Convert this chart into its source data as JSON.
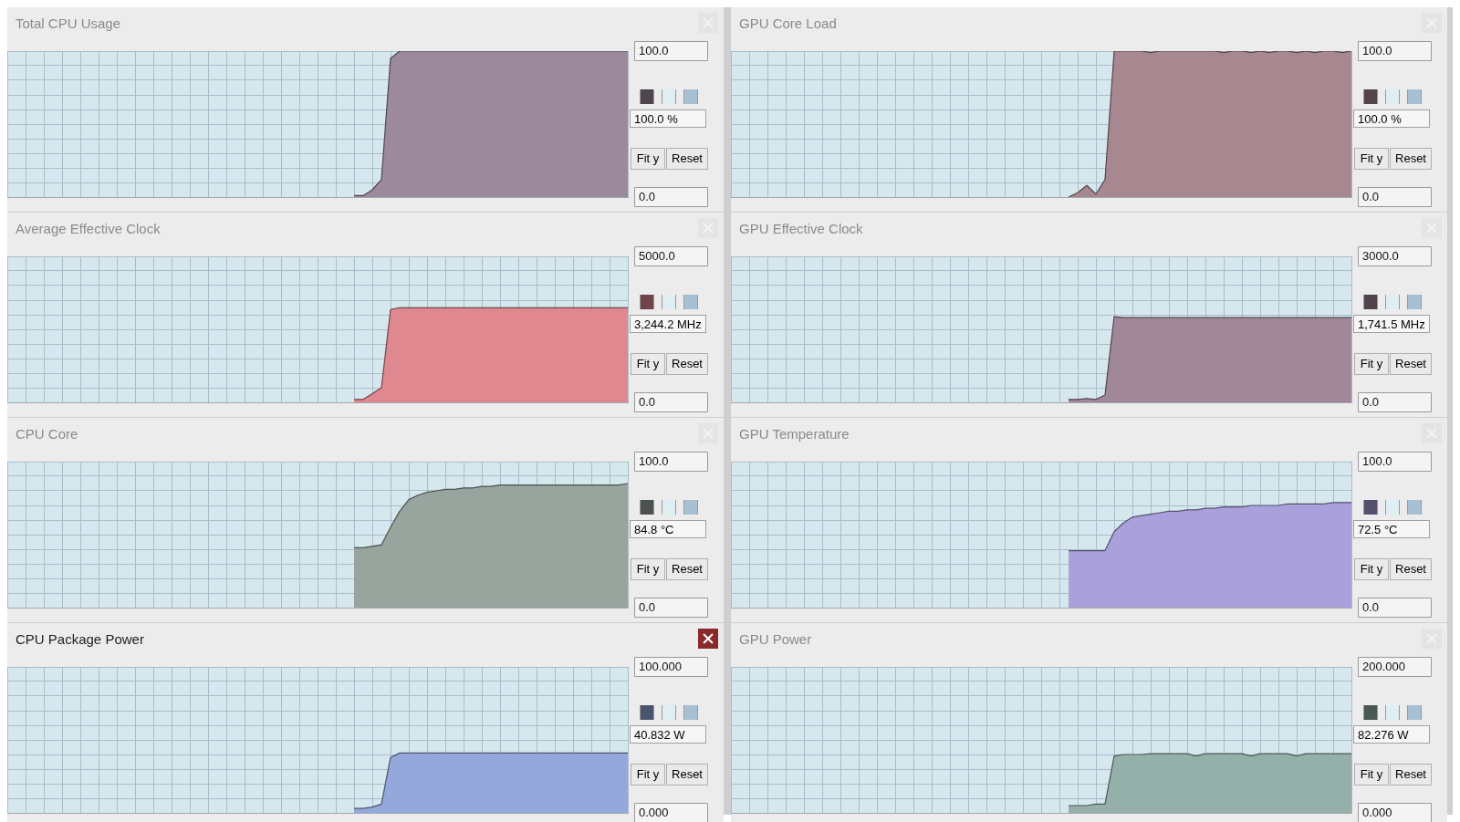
{
  "chart_data": [
    {
      "type": "area",
      "title": "Total CPU Usage",
      "categories": [
        null,
        null,
        null,
        null,
        null,
        null,
        null,
        null,
        null,
        null,
        null,
        null,
        null,
        null,
        null,
        null,
        null,
        null,
        null,
        null,
        null,
        null,
        null,
        null,
        null,
        null,
        null,
        null,
        null,
        null,
        null,
        null,
        null,
        null,
        null,
        null,
        null,
        null,
        null,
        null,
        null,
        null,
        null,
        null,
        null,
        null,
        null,
        null,
        null,
        null,
        null,
        null,
        null,
        null,
        null,
        null,
        null,
        null,
        null,
        null,
        null,
        null,
        null,
        null,
        null,
        null,
        null,
        null,
        null
      ],
      "ylim": [
        0,
        100
      ],
      "yticks": [
        {
          "value": 0,
          "label": "0.0"
        },
        {
          "value": 10,
          "label": null
        },
        {
          "value": 20,
          "label": null
        },
        {
          "value": 30,
          "label": null
        },
        {
          "value": 40,
          "label": null
        },
        {
          "value": 50,
          "label": null
        },
        {
          "value": 60,
          "label": null
        },
        {
          "value": 70,
          "label": null
        },
        {
          "value": 80,
          "label": null
        },
        {
          "value": 90,
          "label": null
        },
        {
          "value": 100,
          "label": "100.0"
        }
      ],
      "grid": true,
      "tick_labels": "y",
      "series": [
        {
          "color": "#9c8a9c",
          "values": [
            null,
            null,
            null,
            null,
            null,
            null,
            null,
            null,
            null,
            null,
            null,
            null,
            null,
            null,
            null,
            null,
            null,
            null,
            null,
            null,
            null,
            null,
            null,
            null,
            null,
            null,
            null,
            null,
            null,
            null,
            null,
            null,
            null,
            null,
            null,
            null,
            null,
            null,
            1,
            1,
            5,
            12,
            95,
            100,
            100,
            100,
            100,
            100,
            100,
            100,
            100,
            100,
            100,
            100,
            100,
            100,
            100,
            100,
            100,
            100,
            100,
            100,
            100,
            100,
            100,
            100,
            100,
            100,
            100
          ]
        }
      ],
      "annotations": [
        "100.0 %",
        "Fit y",
        "Reset"
      ]
    },
    {
      "type": "area",
      "title": "GPU Core Load",
      "categories": [
        null,
        null,
        null,
        null,
        null,
        null,
        null,
        null,
        null,
        null,
        null,
        null,
        null,
        null,
        null,
        null,
        null,
        null,
        null,
        null,
        null,
        null,
        null,
        null,
        null,
        null,
        null,
        null,
        null,
        null,
        null,
        null,
        null,
        null,
        null,
        null,
        null,
        null,
        null,
        null,
        null,
        null,
        null,
        null,
        null,
        null,
        null,
        null,
        null,
        null,
        null,
        null,
        null,
        null,
        null,
        null,
        null,
        null,
        null,
        null,
        null,
        null,
        null,
        null,
        null,
        null,
        null,
        null,
        null
      ],
      "ylim": [
        0,
        100
      ],
      "yticks": [
        {
          "value": 0,
          "label": "0.0"
        },
        {
          "value": 10,
          "label": null
        },
        {
          "value": 20,
          "label": null
        },
        {
          "value": 30,
          "label": null
        },
        {
          "value": 40,
          "label": null
        },
        {
          "value": 50,
          "label": null
        },
        {
          "value": 60,
          "label": null
        },
        {
          "value": 70,
          "label": null
        },
        {
          "value": 80,
          "label": null
        },
        {
          "value": 90,
          "label": null
        },
        {
          "value": 100,
          "label": "100.0"
        }
      ],
      "grid": true,
      "tick_labels": "y",
      "series": [
        {
          "color": "#a88890",
          "values": [
            null,
            null,
            null,
            null,
            null,
            null,
            null,
            null,
            null,
            null,
            null,
            null,
            null,
            null,
            null,
            null,
            null,
            null,
            null,
            null,
            null,
            null,
            null,
            null,
            null,
            null,
            null,
            null,
            null,
            null,
            null,
            null,
            null,
            null,
            null,
            null,
            null,
            0,
            3,
            8,
            2,
            12,
            100,
            100,
            100,
            100,
            99,
            100,
            100,
            100,
            100,
            100,
            100,
            100,
            99,
            100,
            100,
            99,
            100,
            99,
            100,
            100,
            99,
            100,
            99,
            100,
            100,
            99,
            100
          ]
        }
      ],
      "annotations": [
        "100.0 %",
        "Fit y",
        "Reset"
      ]
    },
    {
      "type": "area",
      "title": "Average Effective Clock",
      "categories": [
        null,
        null,
        null,
        null,
        null,
        null,
        null,
        null,
        null,
        null,
        null,
        null,
        null,
        null,
        null,
        null,
        null,
        null,
        null,
        null,
        null,
        null,
        null,
        null,
        null,
        null,
        null,
        null,
        null,
        null,
        null,
        null,
        null,
        null,
        null,
        null,
        null,
        null,
        null,
        null,
        null,
        null,
        null,
        null,
        null,
        null,
        null,
        null,
        null,
        null,
        null,
        null,
        null,
        null,
        null,
        null,
        null,
        null,
        null,
        null,
        null,
        null,
        null,
        null,
        null,
        null,
        null,
        null,
        null
      ],
      "ylim": [
        0,
        5000
      ],
      "yticks": [
        {
          "value": 0,
          "label": "0.0"
        },
        {
          "value": 500,
          "label": null
        },
        {
          "value": 1000,
          "label": null
        },
        {
          "value": 1500,
          "label": null
        },
        {
          "value": 2000,
          "label": null
        },
        {
          "value": 2500,
          "label": null
        },
        {
          "value": 3000,
          "label": null
        },
        {
          "value": 3500,
          "label": null
        },
        {
          "value": 4000,
          "label": null
        },
        {
          "value": 4500,
          "label": null
        },
        {
          "value": 5000,
          "label": "5000.0"
        }
      ],
      "grid": true,
      "tick_labels": "y",
      "series": [
        {
          "color": "#e08890",
          "values": [
            null,
            null,
            null,
            null,
            null,
            null,
            null,
            null,
            null,
            null,
            null,
            null,
            null,
            null,
            null,
            null,
            null,
            null,
            null,
            null,
            null,
            null,
            null,
            null,
            null,
            null,
            null,
            null,
            null,
            null,
            null,
            null,
            null,
            null,
            null,
            null,
            null,
            null,
            100,
            100,
            300,
            500,
            3180,
            3240,
            3240,
            3240,
            3240,
            3240,
            3240,
            3240,
            3240,
            3240,
            3240,
            3240,
            3240,
            3240,
            3240,
            3240,
            3240,
            3240,
            3240,
            3240,
            3240,
            3240,
            3240,
            3240,
            3240,
            3240,
            3240
          ]
        }
      ],
      "annotations": [
        "3,244.2 MHz",
        "Fit y",
        "Reset"
      ]
    },
    {
      "type": "area",
      "title": "GPU Effective Clock",
      "categories": [
        null,
        null,
        null,
        null,
        null,
        null,
        null,
        null,
        null,
        null,
        null,
        null,
        null,
        null,
        null,
        null,
        null,
        null,
        null,
        null,
        null,
        null,
        null,
        null,
        null,
        null,
        null,
        null,
        null,
        null,
        null,
        null,
        null,
        null,
        null,
        null,
        null,
        null,
        null,
        null,
        null,
        null,
        null,
        null,
        null,
        null,
        null,
        null,
        null,
        null,
        null,
        null,
        null,
        null,
        null,
        null,
        null,
        null,
        null,
        null,
        null,
        null,
        null,
        null,
        null,
        null,
        null,
        null,
        null
      ],
      "ylim": [
        0,
        3000
      ],
      "yticks": [
        {
          "value": 0,
          "label": "0.0"
        },
        {
          "value": 300,
          "label": null
        },
        {
          "value": 600,
          "label": null
        },
        {
          "value": 900,
          "label": null
        },
        {
          "value": 1200,
          "label": null
        },
        {
          "value": 1500,
          "label": null
        },
        {
          "value": 1800,
          "label": null
        },
        {
          "value": 2100,
          "label": null
        },
        {
          "value": 2400,
          "label": null
        },
        {
          "value": 2700,
          "label": null
        },
        {
          "value": 3000,
          "label": "3000.0"
        }
      ],
      "grid": true,
      "tick_labels": "y",
      "series": [
        {
          "color": "#a08898",
          "values": [
            null,
            null,
            null,
            null,
            null,
            null,
            null,
            null,
            null,
            null,
            null,
            null,
            null,
            null,
            null,
            null,
            null,
            null,
            null,
            null,
            null,
            null,
            null,
            null,
            null,
            null,
            null,
            null,
            null,
            null,
            null,
            null,
            null,
            null,
            null,
            null,
            null,
            60,
            60,
            80,
            60,
            150,
            1760,
            1740,
            1740,
            1740,
            1740,
            1740,
            1740,
            1740,
            1740,
            1740,
            1740,
            1740,
            1740,
            1740,
            1740,
            1740,
            1740,
            1740,
            1740,
            1740,
            1740,
            1740,
            1740,
            1740,
            1740,
            1740,
            1740
          ]
        }
      ],
      "annotations": [
        "1,741.5 MHz",
        "Fit y",
        "Reset"
      ]
    },
    {
      "type": "area",
      "title": "CPU Core",
      "categories": [
        null,
        null,
        null,
        null,
        null,
        null,
        null,
        null,
        null,
        null,
        null,
        null,
        null,
        null,
        null,
        null,
        null,
        null,
        null,
        null,
        null,
        null,
        null,
        null,
        null,
        null,
        null,
        null,
        null,
        null,
        null,
        null,
        null,
        null,
        null,
        null,
        null,
        null,
        null,
        null,
        null,
        null,
        null,
        null,
        null,
        null,
        null,
        null,
        null,
        null,
        null,
        null,
        null,
        null,
        null,
        null,
        null,
        null,
        null,
        null,
        null,
        null,
        null,
        null,
        null,
        null,
        null,
        null,
        null
      ],
      "ylim": [
        0,
        100
      ],
      "yticks": [
        {
          "value": 0,
          "label": "0.0"
        },
        {
          "value": 10,
          "label": null
        },
        {
          "value": 20,
          "label": null
        },
        {
          "value": 30,
          "label": null
        },
        {
          "value": 40,
          "label": null
        },
        {
          "value": 50,
          "label": null
        },
        {
          "value": 60,
          "label": null
        },
        {
          "value": 70,
          "label": null
        },
        {
          "value": 80,
          "label": null
        },
        {
          "value": 90,
          "label": null
        },
        {
          "value": 100,
          "label": "100.0"
        }
      ],
      "grid": true,
      "tick_labels": "y",
      "series": [
        {
          "color": "#98a49e",
          "values": [
            null,
            null,
            null,
            null,
            null,
            null,
            null,
            null,
            null,
            null,
            null,
            null,
            null,
            null,
            null,
            null,
            null,
            null,
            null,
            null,
            null,
            null,
            null,
            null,
            null,
            null,
            null,
            null,
            null,
            null,
            null,
            null,
            null,
            null,
            null,
            null,
            null,
            null,
            41,
            41,
            42,
            43,
            55,
            66,
            74,
            77,
            79,
            80,
            81,
            81,
            82,
            82,
            83,
            83,
            84,
            84,
            84,
            84,
            84,
            84,
            84,
            84,
            84,
            84,
            84,
            84,
            84,
            84,
            85
          ]
        }
      ],
      "annotations": [
        "84.8 °C",
        "Fit y",
        "Reset"
      ]
    },
    {
      "type": "area",
      "title": "GPU Temperature",
      "categories": [
        null,
        null,
        null,
        null,
        null,
        null,
        null,
        null,
        null,
        null,
        null,
        null,
        null,
        null,
        null,
        null,
        null,
        null,
        null,
        null,
        null,
        null,
        null,
        null,
        null,
        null,
        null,
        null,
        null,
        null,
        null,
        null,
        null,
        null,
        null,
        null,
        null,
        null,
        null,
        null,
        null,
        null,
        null,
        null,
        null,
        null,
        null,
        null,
        null,
        null,
        null,
        null,
        null,
        null,
        null,
        null,
        null,
        null,
        null,
        null,
        null,
        null,
        null,
        null,
        null,
        null,
        null,
        null,
        null
      ],
      "ylim": [
        0,
        100
      ],
      "yticks": [
        {
          "value": 0,
          "label": "0.0"
        },
        {
          "value": 10,
          "label": null
        },
        {
          "value": 20,
          "label": null
        },
        {
          "value": 30,
          "label": null
        },
        {
          "value": 40,
          "label": null
        },
        {
          "value": 50,
          "label": null
        },
        {
          "value": 60,
          "label": null
        },
        {
          "value": 70,
          "label": null
        },
        {
          "value": 80,
          "label": null
        },
        {
          "value": 90,
          "label": null
        },
        {
          "value": 100,
          "label": "100.0"
        }
      ],
      "grid": true,
      "tick_labels": "y",
      "series": [
        {
          "color": "#aaa0dc",
          "values": [
            null,
            null,
            null,
            null,
            null,
            null,
            null,
            null,
            null,
            null,
            null,
            null,
            null,
            null,
            null,
            null,
            null,
            null,
            null,
            null,
            null,
            null,
            null,
            null,
            null,
            null,
            null,
            null,
            null,
            null,
            null,
            null,
            null,
            null,
            null,
            null,
            null,
            39,
            39,
            39,
            39,
            39,
            52,
            58,
            62,
            63,
            64,
            65,
            66,
            66,
            67,
            67,
            68,
            68,
            69,
            69,
            69,
            70,
            70,
            70,
            70,
            71,
            71,
            71,
            71,
            71,
            72,
            72,
            72
          ]
        }
      ],
      "annotations": [
        "72.5 °C",
        "Fit y",
        "Reset"
      ]
    },
    {
      "type": "area",
      "title": "CPU Package Power",
      "categories": [
        null,
        null,
        null,
        null,
        null,
        null,
        null,
        null,
        null,
        null,
        null,
        null,
        null,
        null,
        null,
        null,
        null,
        null,
        null,
        null,
        null,
        null,
        null,
        null,
        null,
        null,
        null,
        null,
        null,
        null,
        null,
        null,
        null,
        null,
        null,
        null,
        null,
        null,
        null,
        null,
        null,
        null,
        null,
        null,
        null,
        null,
        null,
        null,
        null,
        null,
        null,
        null,
        null,
        null,
        null,
        null,
        null,
        null,
        null,
        null,
        null,
        null,
        null,
        null,
        null,
        null,
        null,
        null,
        null
      ],
      "ylim": [
        0,
        100
      ],
      "yticks": [
        {
          "value": 0,
          "label": "0.000"
        },
        {
          "value": 10,
          "label": null
        },
        {
          "value": 20,
          "label": null
        },
        {
          "value": 30,
          "label": null
        },
        {
          "value": 40,
          "label": null
        },
        {
          "value": 50,
          "label": null
        },
        {
          "value": 60,
          "label": null
        },
        {
          "value": 70,
          "label": null
        },
        {
          "value": 80,
          "label": null
        },
        {
          "value": 90,
          "label": null
        },
        {
          "value": 100,
          "label": "100.000"
        }
      ],
      "grid": true,
      "tick_labels": "y",
      "series": [
        {
          "color": "#95a8dc",
          "values": [
            null,
            null,
            null,
            null,
            null,
            null,
            null,
            null,
            null,
            null,
            null,
            null,
            null,
            null,
            null,
            null,
            null,
            null,
            null,
            null,
            null,
            null,
            null,
            null,
            null,
            null,
            null,
            null,
            null,
            null,
            null,
            null,
            null,
            null,
            null,
            null,
            null,
            null,
            3,
            3,
            4,
            6,
            38,
            41,
            41,
            41,
            41,
            41,
            41,
            41,
            41,
            41,
            41,
            41,
            41,
            41,
            41,
            41,
            41,
            41,
            41,
            41,
            41,
            41,
            41,
            41,
            41,
            41,
            41
          ]
        }
      ],
      "annotations": [
        "40.832 W",
        "Fit y",
        "Reset"
      ]
    },
    {
      "type": "area",
      "title": "GPU Power",
      "categories": [
        null,
        null,
        null,
        null,
        null,
        null,
        null,
        null,
        null,
        null,
        null,
        null,
        null,
        null,
        null,
        null,
        null,
        null,
        null,
        null,
        null,
        null,
        null,
        null,
        null,
        null,
        null,
        null,
        null,
        null,
        null,
        null,
        null,
        null,
        null,
        null,
        null,
        null,
        null,
        null,
        null,
        null,
        null,
        null,
        null,
        null,
        null,
        null,
        null,
        null,
        null,
        null,
        null,
        null,
        null,
        null,
        null,
        null,
        null,
        null,
        null,
        null,
        null,
        null,
        null,
        null,
        null,
        null,
        null
      ],
      "ylim": [
        0,
        200
      ],
      "yticks": [
        {
          "value": 0,
          "label": "0.000"
        },
        {
          "value": 20,
          "label": null
        },
        {
          "value": 40,
          "label": null
        },
        {
          "value": 60,
          "label": null
        },
        {
          "value": 80,
          "label": null
        },
        {
          "value": 100,
          "label": null
        },
        {
          "value": 120,
          "label": null
        },
        {
          "value": 140,
          "label": null
        },
        {
          "value": 160,
          "label": null
        },
        {
          "value": 180,
          "label": null
        },
        {
          "value": 200,
          "label": "200.000"
        }
      ],
      "grid": true,
      "tick_labels": "y",
      "series": [
        {
          "color": "#94b0a8",
          "values": [
            null,
            null,
            null,
            null,
            null,
            null,
            null,
            null,
            null,
            null,
            null,
            null,
            null,
            null,
            null,
            null,
            null,
            null,
            null,
            null,
            null,
            null,
            null,
            null,
            null,
            null,
            null,
            null,
            null,
            null,
            null,
            null,
            null,
            null,
            null,
            null,
            null,
            10,
            10,
            10,
            12,
            12,
            78,
            80,
            80,
            80,
            81,
            81,
            81,
            81,
            81,
            78,
            81,
            81,
            81,
            81,
            81,
            78,
            81,
            81,
            81,
            81,
            78,
            81,
            81,
            81,
            81,
            81,
            81
          ]
        }
      ],
      "annotations": [
        "82.276 W",
        "Fit y",
        "Reset"
      ]
    }
  ]
}
